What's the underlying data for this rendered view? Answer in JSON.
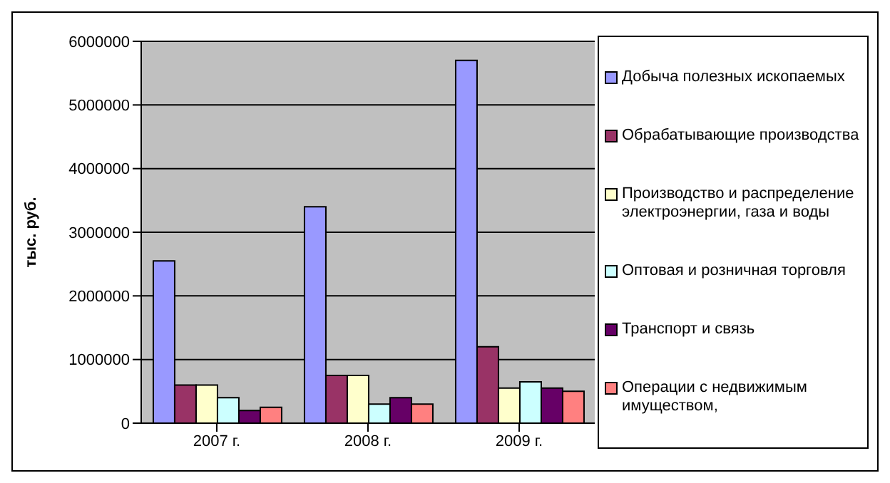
{
  "chart_data": {
    "type": "bar",
    "ylabel": "тыс. руб.",
    "categories": [
      "2007 г.",
      "2008 г.",
      "2009 г."
    ],
    "series": [
      {
        "name": "Добыча полезных ископаемых",
        "color": "#9999ff",
        "values": [
          2550000,
          3400000,
          5700000
        ]
      },
      {
        "name": "Обрабатывающие производства",
        "color": "#993366",
        "values": [
          600000,
          750000,
          1200000
        ]
      },
      {
        "name": "Производство и распределение электроэнергии, газа и воды",
        "color": "#ffffcc",
        "values": [
          600000,
          750000,
          550000
        ]
      },
      {
        "name": "Оптовая и розничная торговля",
        "color": "#ccffff",
        "values": [
          400000,
          300000,
          650000
        ]
      },
      {
        "name": "Транспорт и связь",
        "color": "#660066",
        "values": [
          200000,
          400000,
          550000
        ]
      },
      {
        "name": "Операции с недвижимым имуществом,",
        "color": "#ff8080",
        "values": [
          250000,
          300000,
          500000
        ]
      }
    ],
    "ylim": [
      0,
      6000000
    ],
    "yticks": [
      0,
      1000000,
      2000000,
      3000000,
      4000000,
      5000000,
      6000000
    ],
    "grid": "y",
    "legend": "right"
  }
}
